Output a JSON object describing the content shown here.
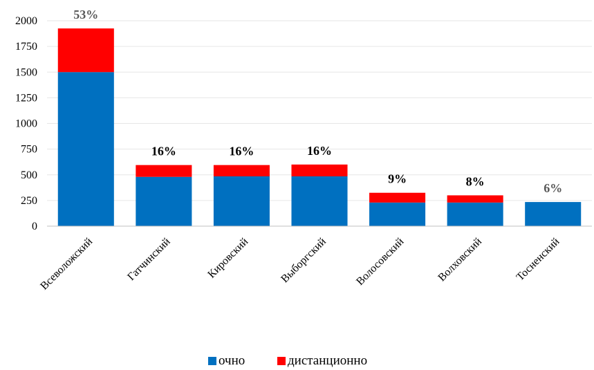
{
  "chart_data": {
    "type": "bar",
    "stacked": true,
    "title": "",
    "xlabel": "",
    "ylabel": "",
    "ylim": [
      0,
      2000
    ],
    "yticks": [
      0,
      250,
      500,
      750,
      1000,
      1250,
      1500,
      1750,
      2000
    ],
    "grid": true,
    "legend_position": "bottom",
    "categories": [
      "Всеволожский",
      "Гатчинский",
      "Кировский",
      "Выборгский",
      "Волосовский",
      "Волховский",
      "Тосненский"
    ],
    "series": [
      {
        "name": "очно",
        "color": "#0070c0",
        "values": [
          1500,
          480,
          485,
          485,
          230,
          230,
          235
        ]
      },
      {
        "name": "дистанционно",
        "color": "#ff0000",
        "values": [
          425,
          115,
          110,
          115,
          95,
          70,
          0
        ]
      }
    ],
    "data_labels": [
      "53%",
      "16%",
      "16%",
      "16%",
      "9%",
      "8%",
      "6%"
    ],
    "data_label_colors": [
      "#595959",
      "#000000",
      "#000000",
      "#000000",
      "#000000",
      "#000000",
      "#595959"
    ]
  }
}
